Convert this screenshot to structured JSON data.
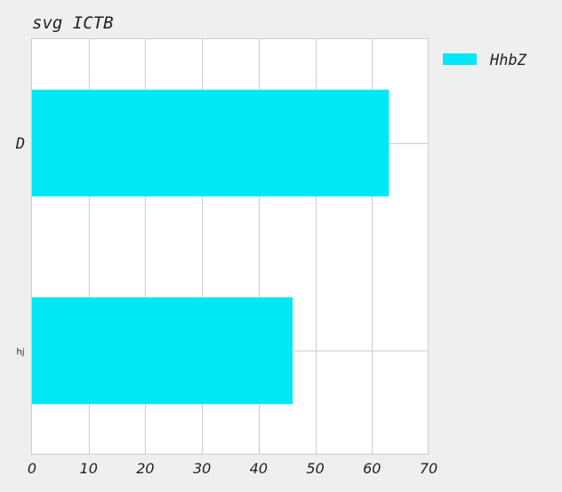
{
  "chart_data": {
    "type": "bar",
    "orientation": "horizontal",
    "title": "svg ICTB",
    "categories": [
      "D",
      "hj"
    ],
    "series": [
      {
        "name": "HhbZ",
        "values": [
          63,
          46
        ],
        "color": "#00e8f5"
      }
    ],
    "xlabel": "",
    "ylabel": "",
    "xlim": [
      0,
      70
    ],
    "xticks": [
      "0",
      "10",
      "20",
      "30",
      "40",
      "50",
      "60",
      "70"
    ],
    "grid": true,
    "legend_position": "right"
  }
}
